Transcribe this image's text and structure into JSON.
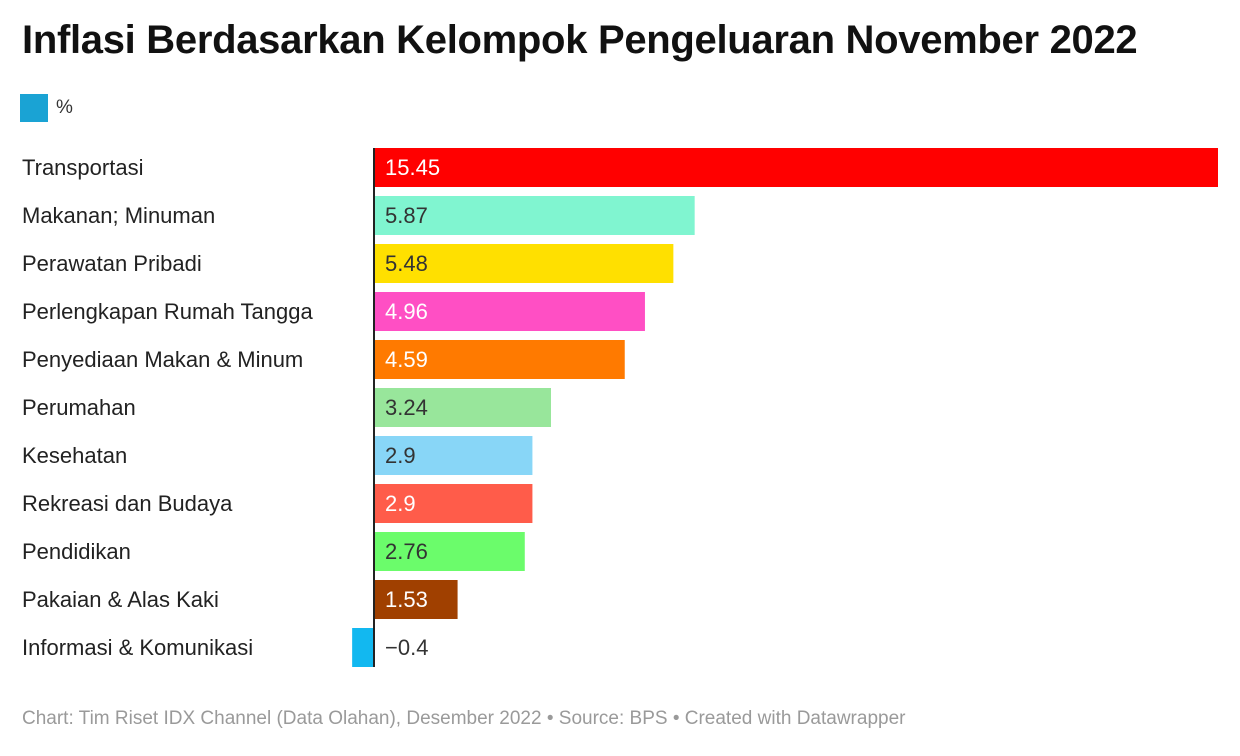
{
  "title": "Inflasi Berdasarkan Kelompok Pengeluaran November 2022",
  "legend": {
    "label": "%",
    "color": "#1aa3d4"
  },
  "footer": "Chart: Tim Riset IDX Channel (Data Olahan), Desember 2022 • Source: BPS • Created with Datawrapper",
  "chart_data": {
    "type": "bar",
    "orientation": "horizontal",
    "title": "Inflasi Berdasarkan Kelompok Pengeluaran November 2022",
    "legend": [
      "%"
    ],
    "categories": [
      "Transportasi",
      "Makanan; Minuman",
      "Perawatan Pribadi",
      "Perlengkapan Rumah Tangga",
      "Penyediaan Makan & Minum",
      "Perumahan",
      "Kesehatan",
      "Rekreasi dan Budaya",
      "Pendidikan",
      "Pakaian & Alas Kaki",
      "Informasi & Komunikasi"
    ],
    "values": [
      15.45,
      5.87,
      5.48,
      4.96,
      4.59,
      3.24,
      2.9,
      2.9,
      2.76,
      1.53,
      -0.4
    ],
    "value_labels": [
      "15.45",
      "5.87",
      "5.48",
      "4.96",
      "4.59",
      "3.24",
      "2.9",
      "2.9",
      "2.76",
      "1.53",
      "−0.4"
    ],
    "colors": [
      "#ff0000",
      "#80f5d0",
      "#ffe000",
      "#ff4fc4",
      "#ff7a00",
      "#98e69b",
      "#88d6f7",
      "#ff5c4a",
      "#6bfc6b",
      "#a04000",
      "#12b8f0"
    ],
    "label_colors": [
      "#ffffff",
      "#333333",
      "#333333",
      "#ffffff",
      "#ffffff",
      "#333333",
      "#333333",
      "#ffffff",
      "#333333",
      "#ffffff",
      "#333333"
    ],
    "xlim": [
      -0.4,
      15.45
    ],
    "grid": false
  }
}
